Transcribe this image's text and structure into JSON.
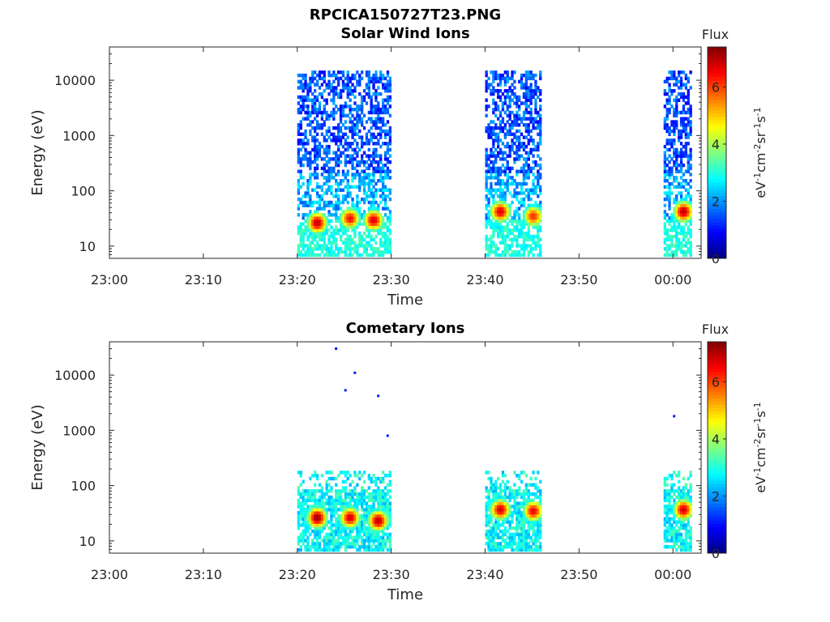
{
  "figure": {
    "title": "RPCICA150727T23.PNG"
  },
  "chart_data": [
    {
      "type": "heatmap",
      "title": "Solar Wind Ions",
      "xlabel": "Time",
      "ylabel": "Energy (eV)",
      "x_tick_labels": [
        "23:00",
        "23:10",
        "23:20",
        "23:30",
        "23:40",
        "23:50",
        "00:00"
      ],
      "y_tick_labels": [
        "10",
        "100",
        "1000",
        "10000"
      ],
      "y_scale": "log",
      "ylim": [
        6,
        40000
      ],
      "xlim": [
        "23:00",
        "00:03"
      ],
      "colorbar": {
        "title": "Flux",
        "label_html": "eV<sup>-1</sup>cm<sup>-2</sup>sr<sup>-1</sup>s<sup>-1</sup>",
        "ticks": [
          "0",
          "2",
          "4",
          "6"
        ],
        "range": [
          0,
          7.4
        ],
        "colormap": "jet"
      },
      "data_intervals": [
        {
          "start": "23:20",
          "end": "23:30"
        },
        {
          "start": "23:40",
          "end": "23:46"
        },
        {
          "start": "23:59",
          "end": "00:02"
        }
      ],
      "peak_regions": [
        {
          "time": "23:22",
          "energy_eV": 25,
          "flux": 7
        },
        {
          "time": "23:25.5",
          "energy_eV": 30,
          "flux": 6.5
        },
        {
          "time": "23:28",
          "energy_eV": 28,
          "flux": 6.8
        },
        {
          "time": "23:41.5",
          "energy_eV": 40,
          "flux": 6.8
        },
        {
          "time": "23:45",
          "energy_eV": 33,
          "flux": 6.2
        },
        {
          "time": "00:01",
          "energy_eV": 40,
          "flux": 7
        }
      ]
    },
    {
      "type": "heatmap",
      "title": "Cometary Ions",
      "xlabel": "Time",
      "ylabel": "Energy (eV)",
      "x_tick_labels": [
        "23:00",
        "23:10",
        "23:20",
        "23:30",
        "23:40",
        "23:50",
        "00:00"
      ],
      "y_tick_labels": [
        "10",
        "100",
        "1000",
        "10000"
      ],
      "y_scale": "log",
      "ylim": [
        6,
        40000
      ],
      "xlim": [
        "23:00",
        "00:03"
      ],
      "colorbar": {
        "title": "Flux",
        "label_html": "eV<sup>-1</sup>cm<sup>-2</sup>sr<sup>-1</sup>s<sup>-1</sup>",
        "ticks": [
          "0",
          "2",
          "4",
          "6"
        ],
        "range": [
          0,
          7.4
        ],
        "colormap": "jet"
      },
      "data_intervals": [
        {
          "start": "23:20",
          "end": "23:30"
        },
        {
          "start": "23:40",
          "end": "23:46"
        },
        {
          "start": "23:59",
          "end": "00:02"
        }
      ],
      "peak_regions": [
        {
          "time": "23:22",
          "energy_eV": 25,
          "flux": 7.2
        },
        {
          "time": "23:25.5",
          "energy_eV": 25,
          "flux": 6.8
        },
        {
          "time": "23:28.5",
          "energy_eV": 22,
          "flux": 7
        },
        {
          "time": "23:41.5",
          "energy_eV": 35,
          "flux": 6.8
        },
        {
          "time": "23:45",
          "energy_eV": 33,
          "flux": 6.6
        },
        {
          "time": "00:01",
          "energy_eV": 35,
          "flux": 6.8
        }
      ]
    }
  ]
}
